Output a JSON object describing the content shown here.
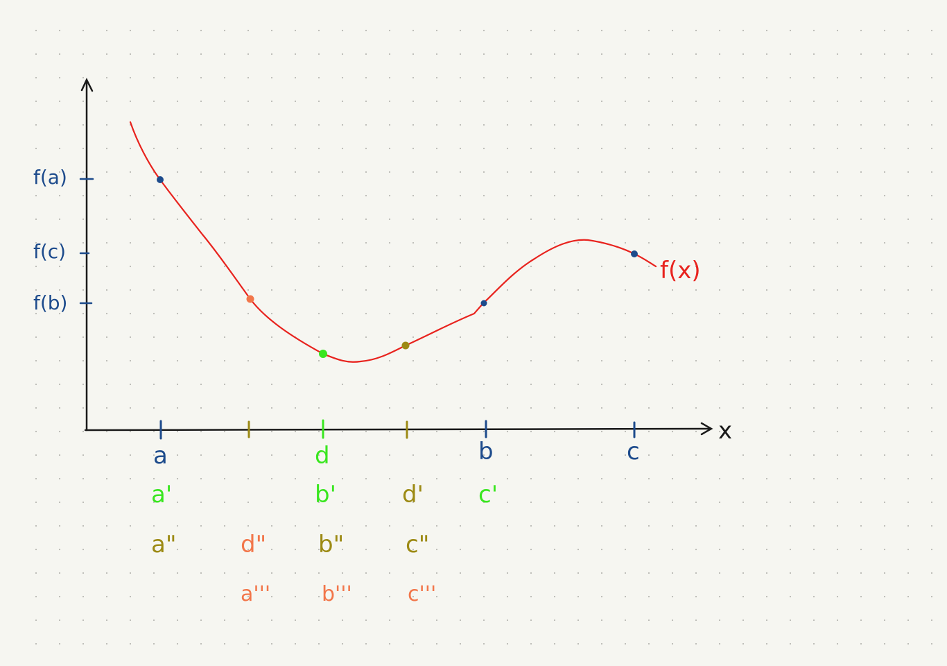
{
  "colors": {
    "background": "#f6f6f1",
    "grid_dot": "#b9b9b4",
    "axis": "#1a1a1a",
    "curve": "#e8231e",
    "blue": "#1d4b8c",
    "green": "#39e61f",
    "olive": "#9c8a14",
    "orange": "#f2764a"
  },
  "axis": {
    "x_label": "x"
  },
  "curve": {
    "label": "f(x)"
  },
  "y_ticks": [
    {
      "label": "f(a)"
    },
    {
      "label": "f(c)"
    },
    {
      "label": "f(b)"
    }
  ],
  "x_ticks": [
    {
      "id": "a",
      "color": "blue"
    },
    {
      "id": "d2",
      "color": "olive"
    },
    {
      "id": "d",
      "color": "green"
    },
    {
      "id": "d1",
      "color": "olive"
    },
    {
      "id": "b",
      "color": "blue"
    },
    {
      "id": "c",
      "color": "blue"
    }
  ],
  "labels": {
    "row0": {
      "a": "a",
      "d": "d",
      "b": "b",
      "c": "c"
    },
    "row1": {
      "a1": "a'",
      "b1": "b'",
      "d1": "d'",
      "c1": "c'"
    },
    "row2": {
      "a2": "a\"",
      "d2": "d\"",
      "b2": "b\"",
      "c2": "c\""
    },
    "row3": {
      "a3": "a'''",
      "b3": "b'''",
      "c3": "c'''"
    }
  },
  "points": [
    {
      "name": "point-a",
      "color": "blue"
    },
    {
      "name": "point-d2",
      "color": "orange"
    },
    {
      "name": "point-d",
      "color": "green"
    },
    {
      "name": "point-d1",
      "color": "olive"
    },
    {
      "name": "point-b",
      "color": "blue"
    },
    {
      "name": "point-c",
      "color": "blue"
    }
  ]
}
